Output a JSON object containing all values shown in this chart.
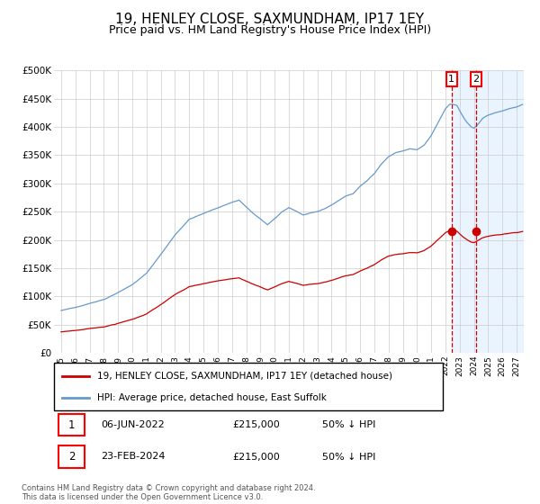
{
  "title": "19, HENLEY CLOSE, SAXMUNDHAM, IP17 1EY",
  "subtitle": "Price paid vs. HM Land Registry's House Price Index (HPI)",
  "title_fontsize": 11,
  "subtitle_fontsize": 9,
  "ylim": [
    0,
    500000
  ],
  "yticks": [
    0,
    50000,
    100000,
    150000,
    200000,
    250000,
    300000,
    350000,
    400000,
    450000,
    500000
  ],
  "ytick_labels": [
    "£0",
    "£50K",
    "£100K",
    "£150K",
    "£200K",
    "£250K",
    "£300K",
    "£350K",
    "£400K",
    "£450K",
    "£500K"
  ],
  "hpi_color": "#6699cc",
  "price_color": "#cc0000",
  "dot_color": "#cc0000",
  "bg_color": "#ffffff",
  "grid_color": "#cccccc",
  "shade_color": "#ddeeff",
  "hatch_color": "#cccccc",
  "marker1_x": 2022.43,
  "marker2_x": 2024.15,
  "marker1_price": 215000,
  "marker2_price": 215000,
  "sale_dates_str": [
    "06-JUN-2022",
    "23-FEB-2024"
  ],
  "sale_prices_str": [
    "£215,000",
    "£215,000"
  ],
  "sale_notes": [
    "50% ↓ HPI",
    "50% ↓ HPI"
  ],
  "legend_label_price": "19, HENLEY CLOSE, SAXMUNDHAM, IP17 1EY (detached house)",
  "legend_label_hpi": "HPI: Average price, detached house, East Suffolk",
  "footer": "Contains HM Land Registry data © Crown copyright and database right 2024.\nThis data is licensed under the Open Government Licence v3.0.",
  "xmin": 1994.5,
  "xmax": 2027.5,
  "future_x": 2024.15,
  "xticks": [
    1995,
    1996,
    1997,
    1998,
    1999,
    2000,
    2001,
    2002,
    2003,
    2004,
    2005,
    2006,
    2007,
    2008,
    2009,
    2010,
    2011,
    2012,
    2013,
    2014,
    2015,
    2016,
    2017,
    2018,
    2019,
    2020,
    2021,
    2022,
    2023,
    2024,
    2025,
    2026,
    2027
  ]
}
